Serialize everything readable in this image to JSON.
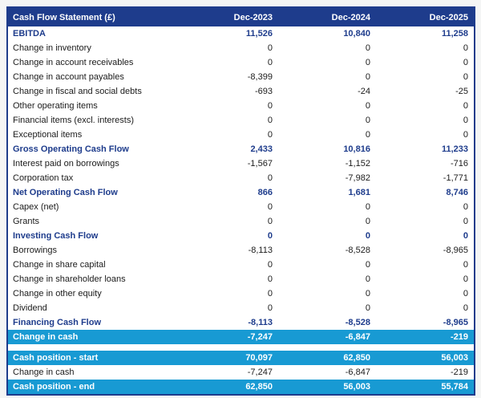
{
  "colors": {
    "navy": "#1e3c8c",
    "cyan": "#189ad3",
    "page_background": "#f4f5f5",
    "body_text": "#1b1b1b"
  },
  "table": {
    "title": "Cash Flow Statement (£)",
    "columns": [
      "Dec-2023",
      "Dec-2024",
      "Dec-2025"
    ],
    "main_rows": [
      {
        "label": "EBITDA",
        "values": [
          "11,526",
          "10,840",
          "11,258"
        ],
        "style": "total"
      },
      {
        "label": "Change in inventory",
        "values": [
          "0",
          "0",
          "0"
        ],
        "style": "normal"
      },
      {
        "label": "Change in account receivables",
        "values": [
          "0",
          "0",
          "0"
        ],
        "style": "normal"
      },
      {
        "label": "Change in account payables",
        "values": [
          "-8,399",
          "0",
          "0"
        ],
        "style": "normal"
      },
      {
        "label": "Change in fiscal and social debts",
        "values": [
          "-693",
          "-24",
          "-25"
        ],
        "style": "normal"
      },
      {
        "label": "Other operating items",
        "values": [
          "0",
          "0",
          "0"
        ],
        "style": "normal"
      },
      {
        "label": "Financial items (excl. interests)",
        "values": [
          "0",
          "0",
          "0"
        ],
        "style": "normal"
      },
      {
        "label": "Exceptional items",
        "values": [
          "0",
          "0",
          "0"
        ],
        "style": "normal"
      },
      {
        "label": "Gross Operating Cash Flow",
        "values": [
          "2,433",
          "10,816",
          "11,233"
        ],
        "style": "total"
      },
      {
        "label": "Interest paid on borrowings",
        "values": [
          "-1,567",
          "-1,152",
          "-716"
        ],
        "style": "normal"
      },
      {
        "label": "Corporation tax",
        "values": [
          "0",
          "-7,982",
          "-1,771"
        ],
        "style": "normal"
      },
      {
        "label": "Net Operating Cash Flow",
        "values": [
          "866",
          "1,681",
          "8,746"
        ],
        "style": "total"
      },
      {
        "label": "Capex (net)",
        "values": [
          "0",
          "0",
          "0"
        ],
        "style": "normal"
      },
      {
        "label": "Grants",
        "values": [
          "0",
          "0",
          "0"
        ],
        "style": "normal"
      },
      {
        "label": "Investing Cash Flow",
        "values": [
          "0",
          "0",
          "0"
        ],
        "style": "total"
      },
      {
        "label": "Borrowings",
        "values": [
          "-8,113",
          "-8,528",
          "-8,965"
        ],
        "style": "normal"
      },
      {
        "label": "Change in share capital",
        "values": [
          "0",
          "0",
          "0"
        ],
        "style": "normal"
      },
      {
        "label": "Change in shareholder loans",
        "values": [
          "0",
          "0",
          "0"
        ],
        "style": "normal"
      },
      {
        "label": "Change in other equity",
        "values": [
          "0",
          "0",
          "0"
        ],
        "style": "normal"
      },
      {
        "label": "Dividend",
        "values": [
          "0",
          "0",
          "0"
        ],
        "style": "normal"
      },
      {
        "label": "Financing Cash Flow",
        "values": [
          "-8,113",
          "-8,528",
          "-8,965"
        ],
        "style": "total"
      },
      {
        "label": "Change in cash",
        "values": [
          "-7,247",
          "-6,847",
          "-219"
        ],
        "style": "highlight"
      }
    ],
    "summary_rows": [
      {
        "label": "Cash position - start",
        "values": [
          "70,097",
          "62,850",
          "56,003"
        ],
        "style": "highlight"
      },
      {
        "label": "Change in cash",
        "values": [
          "-7,247",
          "-6,847",
          "-219"
        ],
        "style": "normal"
      },
      {
        "label": "Cash position - end",
        "values": [
          "62,850",
          "56,003",
          "55,784"
        ],
        "style": "highlight"
      }
    ]
  }
}
